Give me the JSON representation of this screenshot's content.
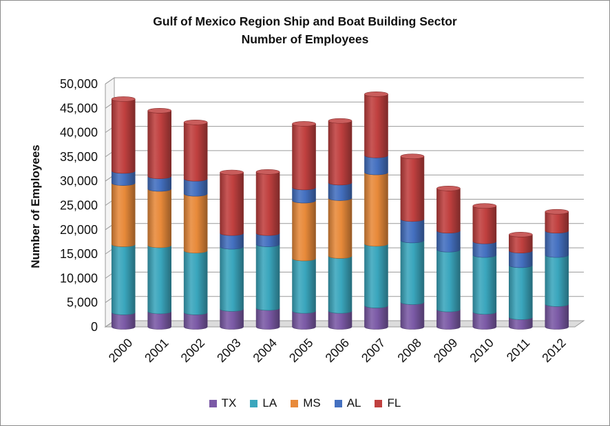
{
  "chart_data": {
    "type": "bar",
    "stacked": true,
    "title": "Gulf of Mexico Region Ship and Boat Building Sector",
    "subtitle": "Number of Employees",
    "ylabel": "Number of Employees",
    "xlabel": "",
    "ylim": [
      0,
      50000
    ],
    "yticks": [
      "0",
      "5,000",
      "10,000",
      "15,000",
      "20,000",
      "25,000",
      "30,000",
      "35,000",
      "40,000",
      "45,000",
      "50,000"
    ],
    "grid": true,
    "legend_position": "bottom",
    "categories": [
      "2000",
      "2001",
      "2002",
      "2003",
      "2004",
      "2005",
      "2006",
      "2007",
      "2008",
      "2009",
      "2010",
      "2011",
      "2012"
    ],
    "series": [
      {
        "name": "TX",
        "color": "#7b5aa6",
        "values": [
          3000,
          3200,
          3000,
          3700,
          3900,
          3300,
          3300,
          4400,
          5100,
          3600,
          3100,
          2000,
          4700
        ]
      },
      {
        "name": "LA",
        "color": "#3aa6bd",
        "values": [
          14000,
          13600,
          12700,
          12800,
          13100,
          10800,
          11300,
          12700,
          12700,
          12300,
          11700,
          10700,
          10100
        ]
      },
      {
        "name": "MS",
        "color": "#e88a3a",
        "values": [
          12600,
          11600,
          11700,
          0,
          0,
          11900,
          11900,
          14700,
          0,
          0,
          0,
          0,
          0
        ]
      },
      {
        "name": "AL",
        "color": "#4470c0",
        "values": [
          2500,
          2600,
          3100,
          2800,
          2300,
          2700,
          3200,
          3500,
          4400,
          3900,
          2800,
          3000,
          5000
        ]
      },
      {
        "name": "FL",
        "color": "#c0403f",
        "values": [
          14800,
          13500,
          11600,
          12500,
          12600,
          13100,
          12700,
          12600,
          12900,
          8700,
          7300,
          3300,
          3900
        ]
      }
    ]
  }
}
